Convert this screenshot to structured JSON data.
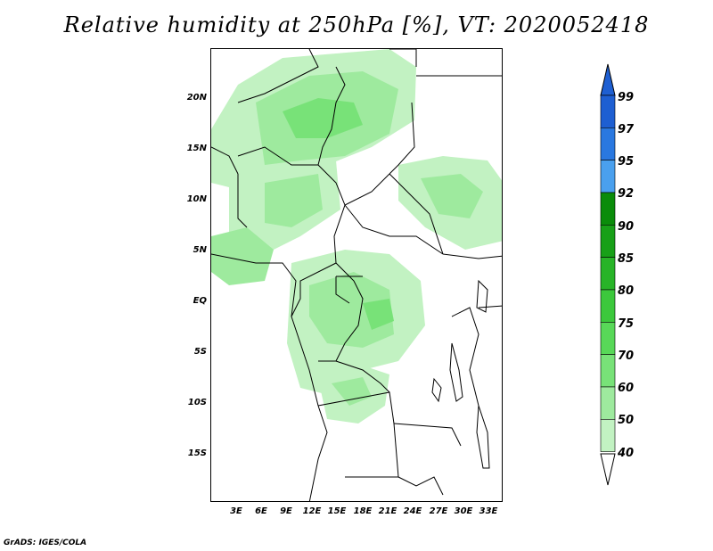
{
  "title": "Relative humidity at 250hPa [%], VT: 2020052418",
  "credit": "GrADS: IGES/COLA",
  "axes": {
    "latitude_labels": [
      "20N",
      "15N",
      "10N",
      "5N",
      "EQ",
      "5S",
      "10S",
      "15S"
    ],
    "longitude_labels": [
      "3E",
      "6E",
      "9E",
      "12E",
      "15E",
      "18E",
      "21E",
      "24E",
      "27E",
      "30E",
      "33E"
    ]
  },
  "colorbar": {
    "labels": [
      "99",
      "97",
      "95",
      "92",
      "90",
      "85",
      "80",
      "75",
      "70",
      "60",
      "50",
      "40"
    ],
    "colors": [
      "#1e5fd2",
      "#2a78e0",
      "#4aa0ee",
      "#0a8c0a",
      "#18a018",
      "#28b428",
      "#3cc83c",
      "#58d858",
      "#78e278",
      "#9eea9e",
      "#c2f2c2",
      "#e2fae2"
    ]
  },
  "chart_data": {
    "type": "heatmap",
    "title": "Relative humidity at 250hPa [%], VT: 2020052418",
    "variable": "Relative humidity",
    "level": "250hPa",
    "units": "%",
    "valid_time": "2020052418",
    "lat_range": [
      -20,
      25
    ],
    "lon_range": [
      0,
      34
    ],
    "contour_levels": [
      40,
      50,
      60,
      70,
      75,
      80,
      85,
      90,
      92,
      95,
      97,
      99
    ],
    "shaded_range_observed": [
      40,
      75
    ]
  }
}
